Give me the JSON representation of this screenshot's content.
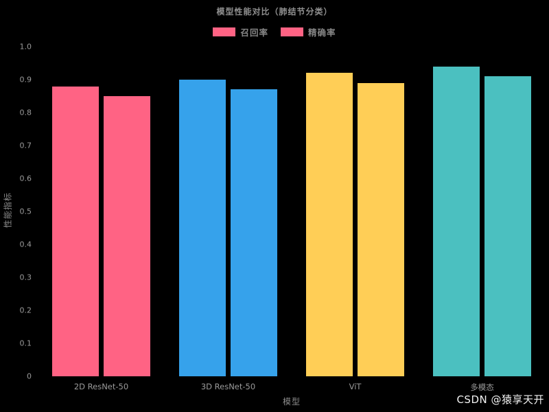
{
  "header": {
    "title": "模型性能对比（肺结节分类）"
  },
  "legend": {
    "items": [
      {
        "label": "召回率",
        "swatch_color": "#FF6384"
      },
      {
        "label": "精确率",
        "swatch_color": "#FF6384"
      }
    ]
  },
  "watermark": {
    "text": "CSDN @猿享天开"
  },
  "chart_data": {
    "type": "bar",
    "title": "模型性能对比（肺结节分类）",
    "categories": [
      "2D ResNet-50",
      "3D ResNet-50",
      "ViT",
      "多模态"
    ],
    "series": [
      {
        "name": "召回率",
        "values": [
          0.88,
          0.9,
          0.92,
          0.94
        ]
      },
      {
        "name": "精确率",
        "values": [
          0.85,
          0.87,
          0.89,
          0.91
        ]
      }
    ],
    "category_colors": [
      "#FF6384",
      "#36A2EB",
      "#FFCE56",
      "#4BC0C0"
    ],
    "legend_swatch_color": "#FF6384",
    "xlabel": "模型",
    "ylabel": "性能指标",
    "ylim": [
      0,
      1.0
    ],
    "yticks": [
      0,
      0.1,
      0.2,
      0.3,
      0.4,
      0.5,
      0.6,
      0.7,
      0.8,
      0.9,
      1.0
    ],
    "ytick_labels": [
      "0",
      "0.1",
      "0.2",
      "0.3",
      "0.4",
      "0.5",
      "0.6",
      "0.7",
      "0.8",
      "0.9",
      "1.0"
    ],
    "legend_position": "top",
    "grid": false,
    "background": "#000000"
  }
}
